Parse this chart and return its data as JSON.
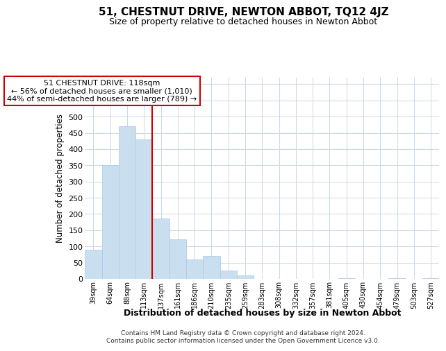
{
  "title": "51, CHESTNUT DRIVE, NEWTON ABBOT, TQ12 4JZ",
  "subtitle": "Size of property relative to detached houses in Newton Abbot",
  "xlabel": "Distribution of detached houses by size in Newton Abbot",
  "ylabel": "Number of detached properties",
  "bar_labels": [
    "39sqm",
    "64sqm",
    "88sqm",
    "113sqm",
    "137sqm",
    "161sqm",
    "186sqm",
    "210sqm",
    "235sqm",
    "259sqm",
    "283sqm",
    "308sqm",
    "332sqm",
    "357sqm",
    "381sqm",
    "405sqm",
    "430sqm",
    "454sqm",
    "479sqm",
    "503sqm",
    "527sqm"
  ],
  "bar_values": [
    90,
    350,
    470,
    430,
    185,
    122,
    60,
    70,
    25,
    10,
    0,
    0,
    0,
    0,
    0,
    3,
    0,
    0,
    3,
    0,
    3
  ],
  "bar_color": "#c9dff0",
  "bar_edge_color": "#a8c8e8",
  "vline_x": 3.5,
  "vline_color": "#cc0000",
  "ylim": [
    0,
    620
  ],
  "yticks": [
    0,
    50,
    100,
    150,
    200,
    250,
    300,
    350,
    400,
    450,
    500,
    550,
    600
  ],
  "annotation_title": "51 CHESTNUT DRIVE: 118sqm",
  "annotation_line1": "← 56% of detached houses are smaller (1,010)",
  "annotation_line2": "44% of semi-detached houses are larger (789) →",
  "annotation_box_color": "#ffffff",
  "annotation_box_edge": "#cc0000",
  "footer_line1": "Contains HM Land Registry data © Crown copyright and database right 2024.",
  "footer_line2": "Contains public sector information licensed under the Open Government Licence v3.0.",
  "background_color": "#ffffff",
  "grid_color": "#c8d8e8"
}
